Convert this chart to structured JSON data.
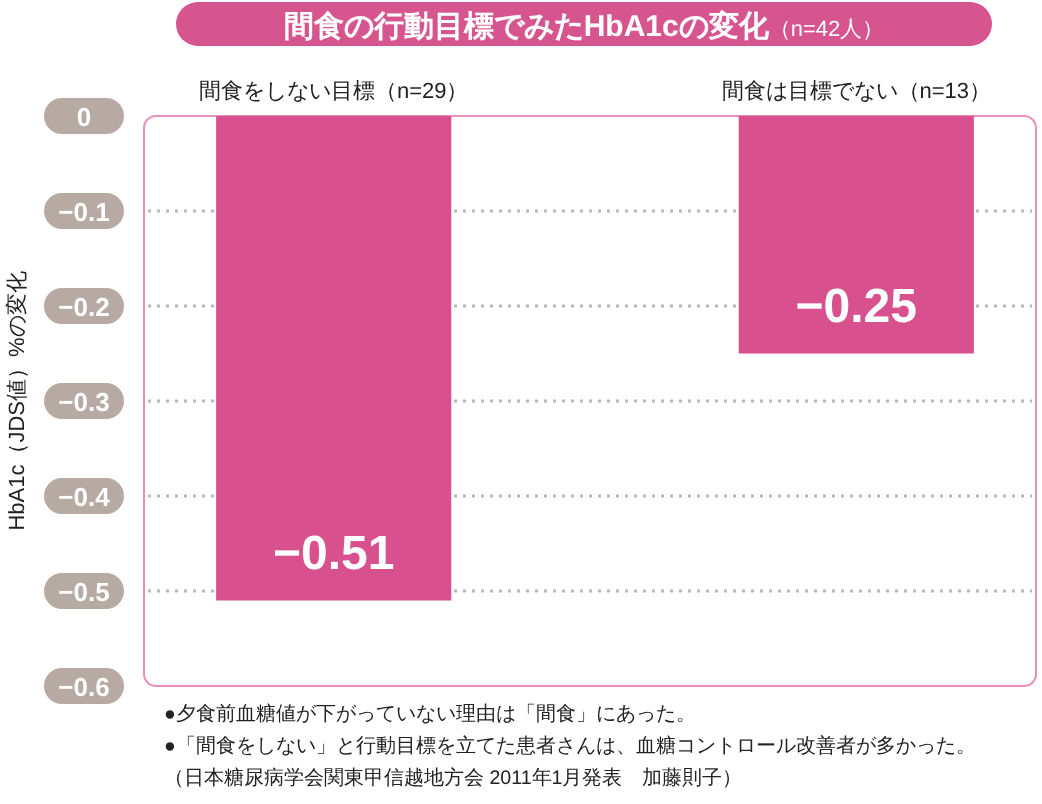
{
  "chart_data": {
    "type": "bar",
    "title": "間食の行動目標でみたHbA1cの変化",
    "subtitle": "（n=42人）",
    "ylabel": "HbA1c（JDS値）%の変化",
    "categories": [
      "間食をしない目標（n=29）",
      "間食は目標でない（n=13）"
    ],
    "values": [
      -0.51,
      -0.25
    ],
    "value_labels": [
      "−0.51",
      "−0.25"
    ],
    "color": "#d9508f",
    "ylim": [
      -0.6,
      0
    ],
    "yticks": [
      0,
      {
        "value": -0.1,
        "label": "−0.1"
      },
      {
        "value": -0.2,
        "label": "−0.2"
      },
      {
        "value": -0.3,
        "label": "−0.3"
      },
      {
        "value": -0.4,
        "label": "−0.4"
      },
      {
        "value": -0.5,
        "label": "−0.5"
      },
      {
        "value": -0.6,
        "label": "−0.6"
      }
    ],
    "grid": "y",
    "annotations": [
      "●夕食前血糖値が下がっていない理由は「間食」にあった。",
      "●「間食をしない」と行動目標を立てた患者さんは、血糖コントロール改善者が多かった。",
      "（日本糖尿病学会関東甲信越地方会 2011年1月発表　加藤則子）"
    ]
  }
}
